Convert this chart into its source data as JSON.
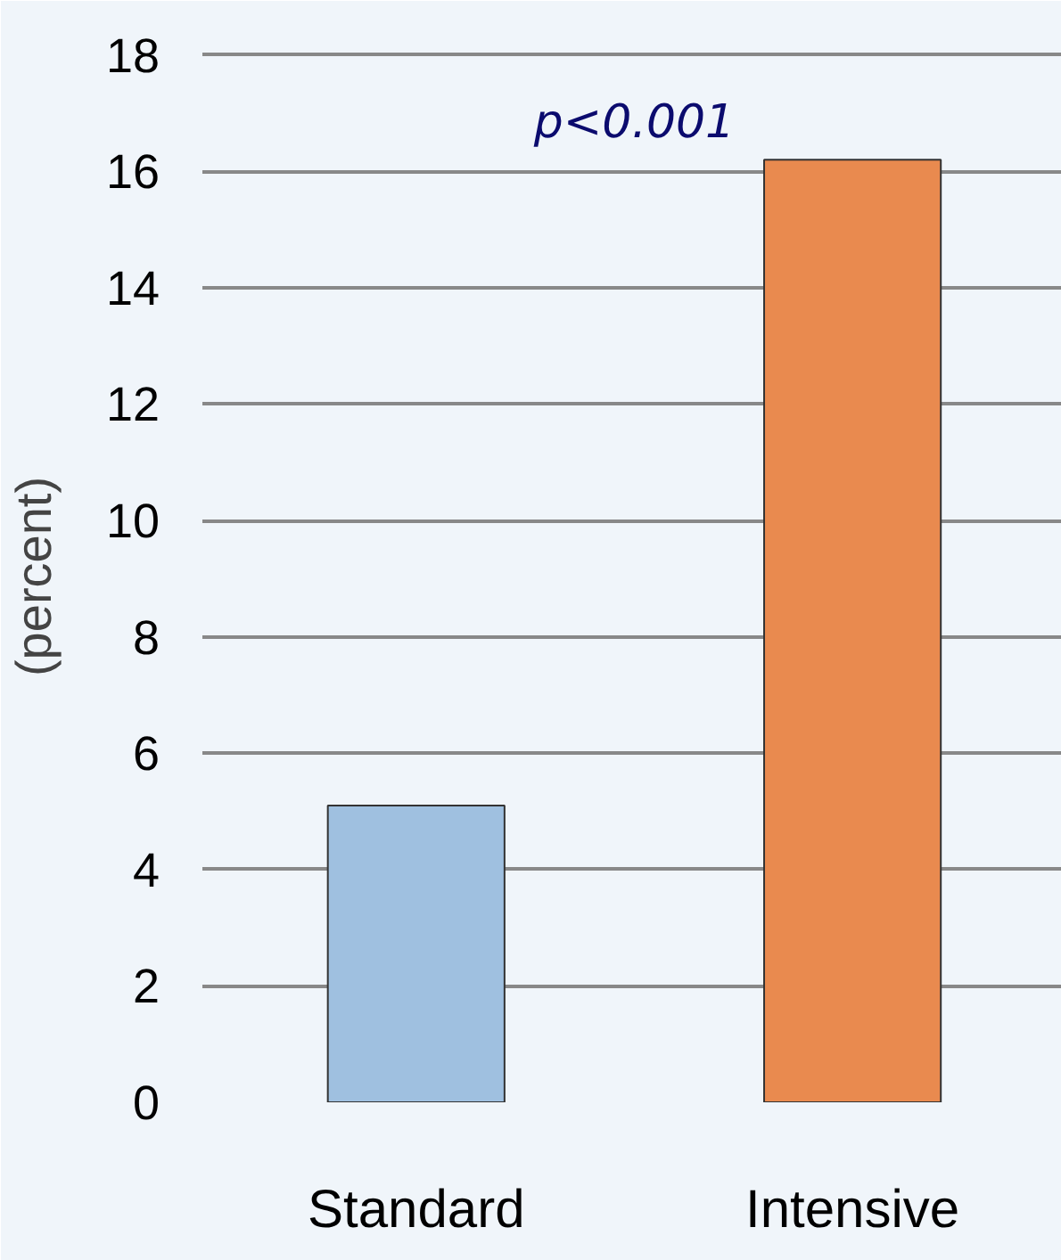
{
  "chart_data": {
    "type": "bar",
    "ylabel": "(percent)",
    "categories": [
      "Standard",
      "Intensive"
    ],
    "values": [
      5.1,
      16.2
    ],
    "colors": [
      "#9fc0e0",
      "#e98a4f"
    ],
    "ylim": [
      0,
      18
    ],
    "yticks": [
      0,
      2,
      4,
      6,
      8,
      10,
      12,
      14,
      16,
      18
    ],
    "grid": "y",
    "annotations": [
      "p<0.001"
    ]
  }
}
